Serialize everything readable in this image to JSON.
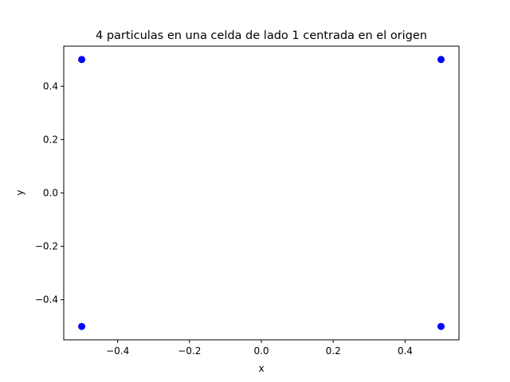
{
  "chart_data": {
    "type": "scatter",
    "title": "4 particulas en una celda de lado 1 centrada en el origen",
    "xlabel": "x",
    "ylabel": "y",
    "xlim": [
      -0.55,
      0.55
    ],
    "ylim": [
      -0.55,
      0.55
    ],
    "xticks": [
      -0.4,
      -0.2,
      0.0,
      0.2,
      0.4
    ],
    "xtick_labels": [
      "−0.4",
      "−0.2",
      "0.0",
      "0.2",
      "0.4"
    ],
    "yticks": [
      -0.4,
      -0.2,
      0.0,
      0.2,
      0.4
    ],
    "ytick_labels": [
      "−0.4",
      "−0.2",
      "0.0",
      "0.2",
      "0.4"
    ],
    "grid": false,
    "marker_color": "#0000ff",
    "series": [
      {
        "x": [
          -0.5,
          0.5,
          -0.5,
          0.5
        ],
        "y": [
          0.5,
          0.5,
          -0.5,
          -0.5
        ]
      }
    ]
  }
}
